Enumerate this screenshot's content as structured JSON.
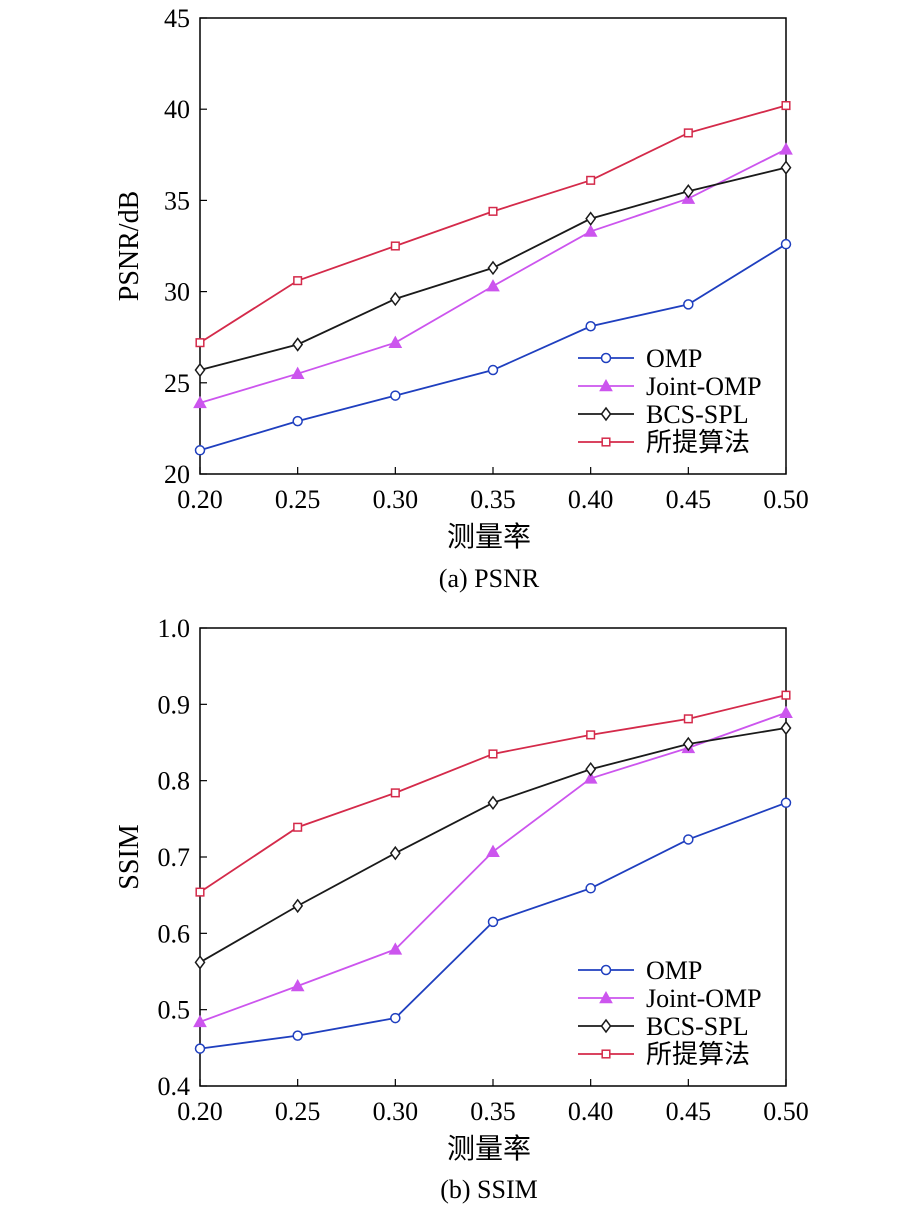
{
  "colors": {
    "OMP": "#1f3fbf",
    "Joint-OMP": "#cc55ee",
    "BCS-SPL": "#1a1a1a",
    "所提算法": "#d42a4a"
  },
  "markers": {
    "OMP": "circle",
    "Joint-OMP": "triangle",
    "BCS-SPL": "diamond",
    "所提算法": "square"
  },
  "chart_data": [
    {
      "type": "line",
      "caption": "(a) PSNR",
      "xlabel": "测量率",
      "ylabel": "PSNR/dB",
      "x": [
        0.2,
        0.25,
        0.3,
        0.35,
        0.4,
        0.45,
        0.5
      ],
      "xtick_labels": [
        "0.20",
        "0.25",
        "0.30",
        "0.35",
        "0.40",
        "0.45",
        "0.50"
      ],
      "ylim": [
        20,
        45
      ],
      "ytick_values": [
        20,
        25,
        30,
        35,
        40,
        45
      ],
      "ytick_labels": [
        "20",
        "25",
        "30",
        "35",
        "40",
        "45"
      ],
      "legend_position": "bottom-right",
      "grid": false,
      "series": [
        {
          "name": "OMP",
          "values": [
            21.3,
            22.9,
            24.3,
            25.7,
            28.1,
            29.3,
            32.6
          ]
        },
        {
          "name": "Joint-OMP",
          "values": [
            23.9,
            25.5,
            27.2,
            30.3,
            33.3,
            35.1,
            37.8
          ]
        },
        {
          "name": "BCS-SPL",
          "values": [
            25.7,
            27.1,
            29.6,
            31.3,
            34.0,
            35.5,
            36.8
          ]
        },
        {
          "name": "所提算法",
          "values": [
            27.2,
            30.6,
            32.5,
            34.4,
            36.1,
            38.7,
            40.2
          ]
        }
      ]
    },
    {
      "type": "line",
      "caption": "(b) SSIM",
      "xlabel": "测量率",
      "ylabel": "SSIM",
      "x": [
        0.2,
        0.25,
        0.3,
        0.35,
        0.4,
        0.45,
        0.5
      ],
      "xtick_labels": [
        "0.20",
        "0.25",
        "0.30",
        "0.35",
        "0.40",
        "0.45",
        "0.50"
      ],
      "ylim": [
        0.4,
        1.0
      ],
      "ytick_values": [
        0.4,
        0.5,
        0.6,
        0.7,
        0.8,
        0.9,
        1.0
      ],
      "ytick_labels": [
        "0.4",
        "0.5",
        "0.6",
        "0.7",
        "0.8",
        "0.9",
        "1.0"
      ],
      "legend_position": "bottom-right",
      "grid": false,
      "series": [
        {
          "name": "OMP",
          "values": [
            0.449,
            0.466,
            0.489,
            0.615,
            0.659,
            0.723,
            0.771
          ]
        },
        {
          "name": "Joint-OMP",
          "values": [
            0.484,
            0.531,
            0.579,
            0.707,
            0.803,
            0.843,
            0.889
          ]
        },
        {
          "name": "BCS-SPL",
          "values": [
            0.562,
            0.636,
            0.705,
            0.771,
            0.815,
            0.848,
            0.869
          ]
        },
        {
          "name": "所提算法",
          "values": [
            0.654,
            0.739,
            0.784,
            0.835,
            0.86,
            0.881,
            0.912
          ]
        }
      ]
    }
  ]
}
